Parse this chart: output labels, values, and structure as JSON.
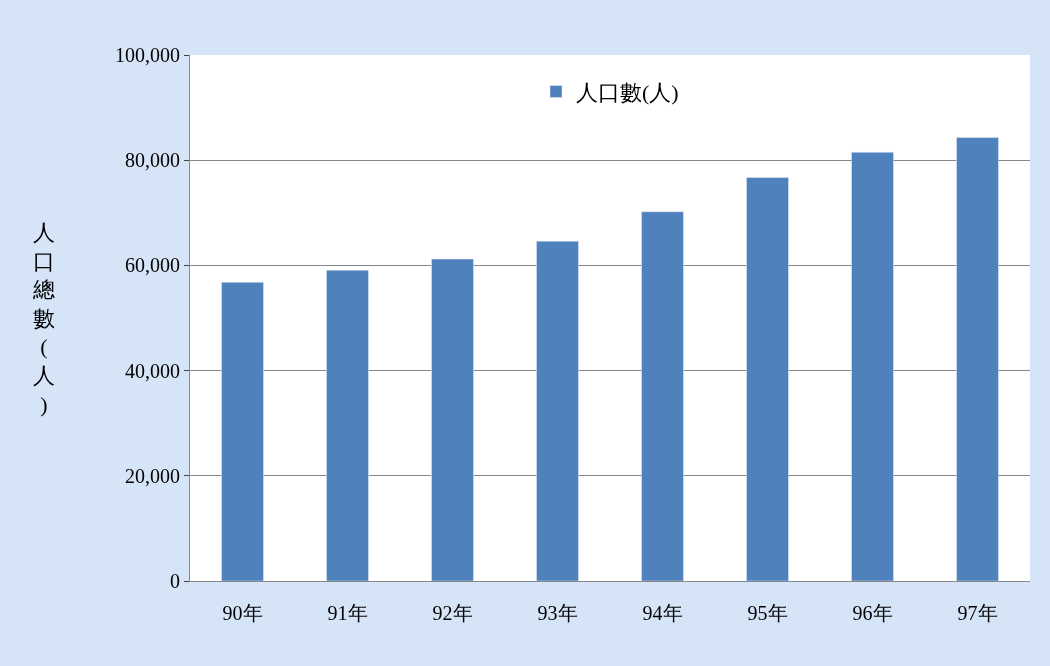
{
  "chart_data": {
    "type": "bar",
    "ylabel": "人口總數(人)",
    "categories": [
      "90年",
      "91年",
      "92年",
      "93年",
      "94年",
      "95年",
      "96年",
      "97年"
    ],
    "series": [
      {
        "name": "人口數(人)",
        "color": "#4f81bd",
        "values": [
          56800,
          59100,
          61200,
          64600,
          70200,
          76700,
          81500,
          84300
        ]
      }
    ],
    "ylim": [
      0,
      100000
    ],
    "yticks": [
      {
        "value": 0,
        "label": "0"
      },
      {
        "value": 20000,
        "label": "20,000"
      },
      {
        "value": 40000,
        "label": "40,000"
      },
      {
        "value": 60000,
        "label": "60,000"
      },
      {
        "value": 80000,
        "label": "80,000"
      },
      {
        "value": 100000,
        "label": "100,000"
      }
    ],
    "grid": "y",
    "legend": "top"
  }
}
